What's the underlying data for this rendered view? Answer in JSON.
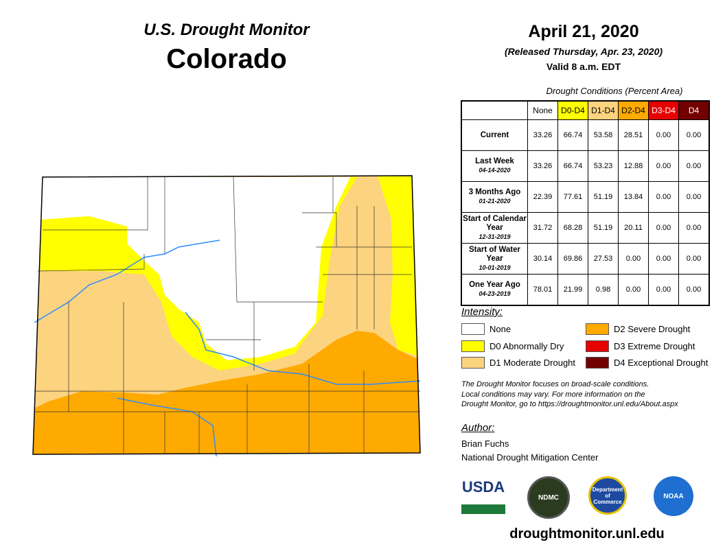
{
  "header": {
    "subtitle": "U.S. Drought Monitor",
    "state": "Colorado",
    "date": "April 21, 2020",
    "released": "(Released Thursday, Apr. 23, 2020)",
    "valid": "Valid 8 a.m. EDT"
  },
  "table": {
    "caption": "Drought Conditions (Percent Area)",
    "columns": [
      "None",
      "D0-D4",
      "D1-D4",
      "D2-D4",
      "D3-D4",
      "D4"
    ],
    "column_colors": [
      "#FFFFFF",
      "#FFFF00",
      "#FCD37F",
      "#FFAA00",
      "#E60000",
      "#730000"
    ],
    "rows": [
      {
        "label": "Current",
        "date": "",
        "values": [
          "33.26",
          "66.74",
          "53.58",
          "28.51",
          "0.00",
          "0.00"
        ]
      },
      {
        "label": "Last Week",
        "date": "04-14-2020",
        "values": [
          "33.26",
          "66.74",
          "53.23",
          "12.88",
          "0.00",
          "0.00"
        ]
      },
      {
        "label": "3 Months Ago",
        "date": "01-21-2020",
        "values": [
          "22.39",
          "77.61",
          "51.19",
          "13.84",
          "0.00",
          "0.00"
        ]
      },
      {
        "label": "Start of Calendar Year",
        "date": "12-31-2019",
        "values": [
          "31.72",
          "68.28",
          "51.19",
          "20.11",
          "0.00",
          "0.00"
        ]
      },
      {
        "label": "Start of Water Year",
        "date": "10-01-2019",
        "values": [
          "30.14",
          "69.86",
          "27.53",
          "0.00",
          "0.00",
          "0.00"
        ]
      },
      {
        "label": "One Year Ago",
        "date": "04-23-2019",
        "values": [
          "78.01",
          "21.99",
          "0.98",
          "0.00",
          "0.00",
          "0.00"
        ]
      }
    ]
  },
  "legend": {
    "title": "Intensity:",
    "items": [
      {
        "label": "None",
        "color": "#FFFFFF"
      },
      {
        "label": "D0 Abnormally Dry",
        "color": "#FFFF00"
      },
      {
        "label": "D1 Moderate Drought",
        "color": "#FCD37F"
      },
      {
        "label": "D2 Severe Drought",
        "color": "#FFAA00"
      },
      {
        "label": "D3 Extreme Drought",
        "color": "#E60000"
      },
      {
        "label": "D4 Exceptional Drought",
        "color": "#730000"
      }
    ]
  },
  "note": [
    "The Drought Monitor focuses on broad-scale conditions.",
    "Local conditions may vary. For more information on the",
    "Drought Monitor, go to https://droughtmonitor.unl.edu/About.aspx"
  ],
  "author": {
    "heading": "Author:",
    "name": "Brian Fuchs",
    "org": "National Drought Mitigation Center"
  },
  "logos": [
    "USDA",
    "NDMC",
    "Department of Commerce",
    "NOAA"
  ],
  "url": "droughtmonitor.unl.edu"
}
